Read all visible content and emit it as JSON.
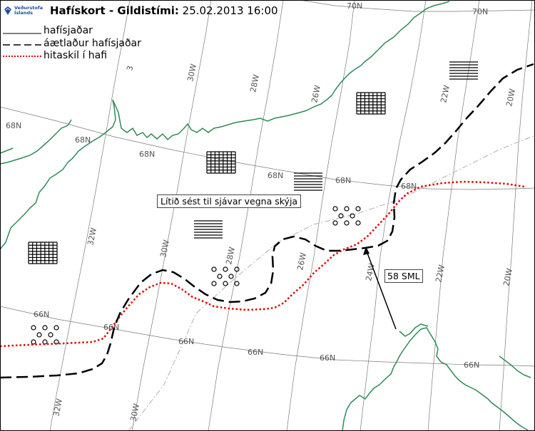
{
  "header": {
    "logo_line1": "Veðurstofa",
    "logo_line2": "Íslands",
    "title_prefix": "Hafískort - Gildistími:",
    "title_value": "25.02.2013 16:00"
  },
  "legend": [
    {
      "label": "hafísjaðar",
      "style": "solid"
    },
    {
      "label": "áætlaður hafísjaðar",
      "style": "dashed"
    },
    {
      "label": "hitaskil í hafi",
      "style": "dotted-red"
    }
  ],
  "colors": {
    "coast": "#2e8b57",
    "ice_edge": "#000000",
    "temperature_front": "#e60000",
    "graticule": "#7a7a7a",
    "logo": "#1d4f91"
  },
  "graticule_labels": {
    "lat": [
      "70N",
      "70N",
      "68N",
      "68N",
      "68N",
      "68N",
      "68N",
      "68N",
      "66N",
      "66N",
      "66N",
      "66N",
      "66N",
      "66N"
    ],
    "lon": [
      "30W",
      "28W",
      "26W",
      "22W",
      "20W",
      "32W",
      "30W",
      "28W",
      "26W",
      "24W",
      "22W",
      "20W",
      "32W",
      "30W",
      "3"
    ]
  },
  "annotations": {
    "note": "Lítið sést til sjávar vegna skýja",
    "distance": "58 SML"
  }
}
